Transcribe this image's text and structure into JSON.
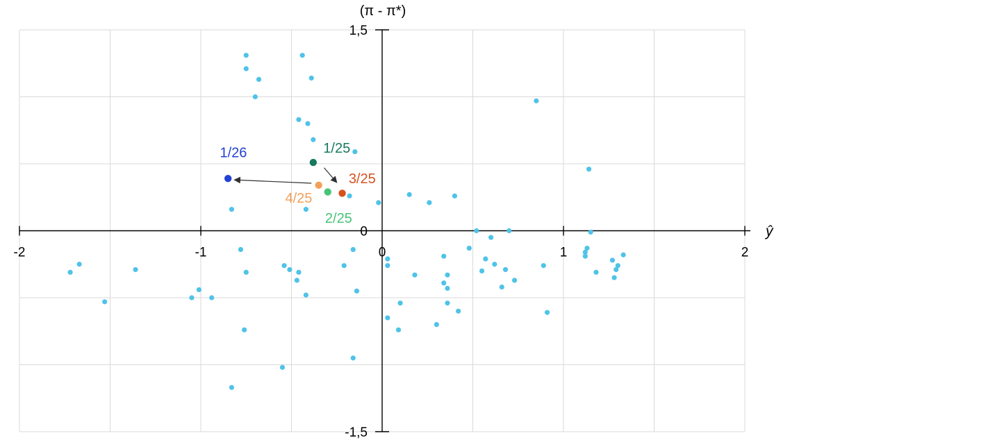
{
  "chart_data": {
    "type": "scatter",
    "title": "",
    "y_axis_title": "(π - π*)",
    "x_axis_title": "ŷ",
    "x_range": [
      -2,
      2
    ],
    "y_range": [
      -1.5,
      1.5
    ],
    "grid": true,
    "grid_step": 0.5,
    "legend_position": "none",
    "x_ticks": [
      {
        "value": -2,
        "label": "-2"
      },
      {
        "value": -1,
        "label": "-1"
      },
      {
        "value": 0,
        "label": "0"
      },
      {
        "value": 1,
        "label": "1"
      },
      {
        "value": 2,
        "label": "2"
      }
    ],
    "y_ticks": [
      {
        "value": 1.5,
        "label": "1,5"
      },
      {
        "value": 0,
        "label": "0"
      },
      {
        "value": -1.5,
        "label": "-1,5"
      }
    ],
    "series": [
      {
        "name": "observations",
        "color": "#4fc3e8",
        "marker_radius": 3.6,
        "points": [
          [
            -0.75,
            1.31
          ],
          [
            -0.75,
            1.21
          ],
          [
            -0.68,
            1.13
          ],
          [
            -0.7,
            1.0
          ],
          [
            -0.44,
            1.31
          ],
          [
            -0.39,
            1.14
          ],
          [
            -0.46,
            0.83
          ],
          [
            -0.41,
            0.8
          ],
          [
            -0.38,
            0.68
          ],
          [
            -0.15,
            0.59
          ],
          [
            -0.18,
            0.26
          ],
          [
            -0.42,
            0.16
          ],
          [
            -0.83,
            0.16
          ],
          [
            -0.02,
            0.21
          ],
          [
            0.15,
            0.27
          ],
          [
            0.26,
            0.21
          ],
          [
            0.4,
            0.26
          ],
          [
            0.85,
            0.97
          ],
          [
            1.14,
            0.46
          ],
          [
            0.52,
            0.0
          ],
          [
            0.7,
            0.0
          ],
          [
            1.15,
            -0.01
          ],
          [
            0.6,
            -0.05
          ],
          [
            0.48,
            -0.13
          ],
          [
            0.57,
            -0.21
          ],
          [
            0.62,
            -0.25
          ],
          [
            0.55,
            -0.3
          ],
          [
            0.68,
            -0.29
          ],
          [
            0.73,
            -0.37
          ],
          [
            0.66,
            -0.42
          ],
          [
            0.89,
            -0.26
          ],
          [
            0.91,
            -0.61
          ],
          [
            1.13,
            -0.13
          ],
          [
            1.12,
            -0.16
          ],
          [
            1.12,
            -0.19
          ],
          [
            1.18,
            -0.31
          ],
          [
            1.27,
            -0.22
          ],
          [
            1.33,
            -0.18
          ],
          [
            1.3,
            -0.26
          ],
          [
            1.29,
            -0.29
          ],
          [
            1.28,
            -0.35
          ],
          [
            0.03,
            -0.21
          ],
          [
            0.03,
            -0.26
          ],
          [
            0.18,
            -0.33
          ],
          [
            0.34,
            -0.19
          ],
          [
            0.36,
            -0.33
          ],
          [
            0.34,
            -0.39
          ],
          [
            0.36,
            -0.43
          ],
          [
            0.1,
            -0.54
          ],
          [
            0.03,
            -0.65
          ],
          [
            0.09,
            -0.74
          ],
          [
            0.36,
            -0.54
          ],
          [
            0.42,
            -0.6
          ],
          [
            0.3,
            -0.7
          ],
          [
            -0.16,
            -0.14
          ],
          [
            -0.21,
            -0.26
          ],
          [
            -0.14,
            -0.45
          ],
          [
            -0.16,
            -0.95
          ],
          [
            -0.55,
            -1.02
          ],
          [
            -0.83,
            -1.17
          ],
          [
            -0.78,
            -0.14
          ],
          [
            -0.75,
            -0.31
          ],
          [
            -0.54,
            -0.26
          ],
          [
            -0.51,
            -0.29
          ],
          [
            -0.46,
            -0.31
          ],
          [
            -0.47,
            -0.37
          ],
          [
            -0.42,
            -0.48
          ],
          [
            -0.76,
            -0.74
          ],
          [
            -1.72,
            -0.31
          ],
          [
            -1.67,
            -0.25
          ],
          [
            -1.36,
            -0.29
          ],
          [
            -1.53,
            -0.53
          ],
          [
            -1.05,
            -0.5
          ],
          [
            -1.01,
            -0.44
          ],
          [
            -0.94,
            -0.5
          ]
        ]
      }
    ],
    "highlights": [
      {
        "label": "1/26",
        "color": "#2341d4",
        "x": -0.85,
        "y": 0.39,
        "label_x": -0.82,
        "label_y": 0.585,
        "marker_radius": 5.2
      },
      {
        "label": "1/25",
        "color": "#17795e",
        "x": -0.38,
        "y": 0.51,
        "label_x": -0.25,
        "label_y": 0.62,
        "marker_radius": 5.2
      },
      {
        "label": "3/25",
        "color": "#d7511f",
        "x": -0.22,
        "y": 0.28,
        "label_x": -0.11,
        "label_y": 0.39,
        "marker_radius": 5.2
      },
      {
        "label": "4/25",
        "color": "#f2a15b",
        "x": -0.35,
        "y": 0.34,
        "label_x": -0.46,
        "label_y": 0.245,
        "marker_radius": 5.2
      },
      {
        "label": "2/25",
        "color": "#47c476",
        "x": -0.3,
        "y": 0.29,
        "label_x": -0.24,
        "label_y": 0.095,
        "marker_radius": 5.2
      }
    ],
    "arrows": [
      {
        "from": [
          -0.39,
          0.355
        ],
        "to": [
          -0.815,
          0.38
        ]
      },
      {
        "from": [
          -0.32,
          0.47
        ],
        "to": [
          -0.25,
          0.36
        ]
      }
    ],
    "colors": {
      "grid": "#d9d9d9",
      "axis": "#000000",
      "tick_label": "#000000",
      "arrow": "#303030",
      "point": "#4fc3e8"
    }
  }
}
